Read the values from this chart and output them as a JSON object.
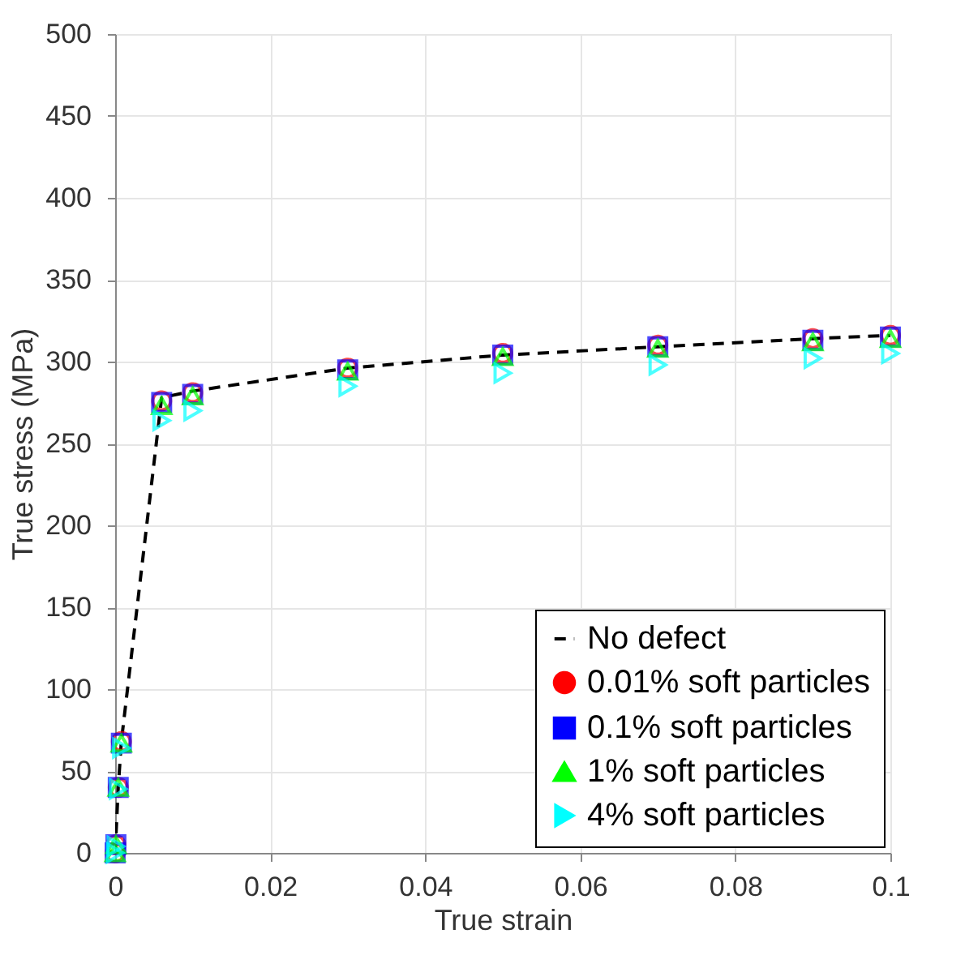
{
  "chart_data": {
    "type": "scatter",
    "xlabel": "True strain",
    "ylabel": "True stress (MPa)",
    "xlim": [
      0,
      0.1
    ],
    "xticks": [
      0,
      0.02,
      0.04,
      0.06,
      0.08,
      0.1
    ],
    "ylim": [
      0,
      500
    ],
    "yticks": [
      0,
      50,
      100,
      150,
      200,
      250,
      300,
      350,
      400,
      450,
      500
    ],
    "grid": true,
    "legend": "bottom right",
    "series": [
      {
        "name": "No defect",
        "type": "line",
        "line_style": "dashed",
        "marker": "none",
        "color": "#000000",
        "x": [
          0,
          0.0004,
          0.0008,
          0.006,
          0.01,
          0.03,
          0.05,
          0.07,
          0.09,
          0.1
        ],
        "values": [
          0,
          40,
          68,
          278,
          282,
          296,
          304,
          309,
          314,
          316
        ]
      },
      {
        "name": "0.01% soft particles",
        "type": "scatter",
        "marker": "circle",
        "color": "#ff0000",
        "x": [
          0,
          0.0001,
          0.0004,
          0.0008,
          0.006,
          0.01,
          0.03,
          0.05,
          0.07,
          0.09,
          0.1
        ],
        "values": [
          0,
          5,
          40,
          68,
          276,
          281,
          296,
          305,
          310,
          314,
          316
        ]
      },
      {
        "name": "0.1% soft particles",
        "type": "scatter",
        "marker": "square",
        "color": "#0000ff",
        "x": [
          0,
          0.0001,
          0.0004,
          0.0008,
          0.006,
          0.01,
          0.03,
          0.05,
          0.07,
          0.09,
          0.1
        ],
        "values": [
          0,
          5,
          40,
          67,
          275,
          280,
          295,
          304,
          309,
          313,
          315
        ]
      },
      {
        "name": "1% soft particles",
        "type": "scatter",
        "marker": "triangle",
        "color": "#00ff00",
        "x": [
          0,
          0.0001,
          0.0004,
          0.0008,
          0.006,
          0.01,
          0.03,
          0.05,
          0.07,
          0.09,
          0.1
        ],
        "values": [
          0,
          5,
          40,
          67,
          273,
          279,
          294,
          303,
          308,
          312,
          314
        ]
      },
      {
        "name": "4% soft particles",
        "type": "scatter",
        "marker": "triangle-right",
        "color": "#00ffff",
        "x": [
          0,
          0.0001,
          0.0004,
          0.0008,
          0.006,
          0.01,
          0.03,
          0.05,
          0.07,
          0.09,
          0.1
        ],
        "values": [
          0,
          4,
          39,
          64,
          264,
          270,
          285,
          293,
          298,
          302,
          305
        ]
      }
    ]
  }
}
